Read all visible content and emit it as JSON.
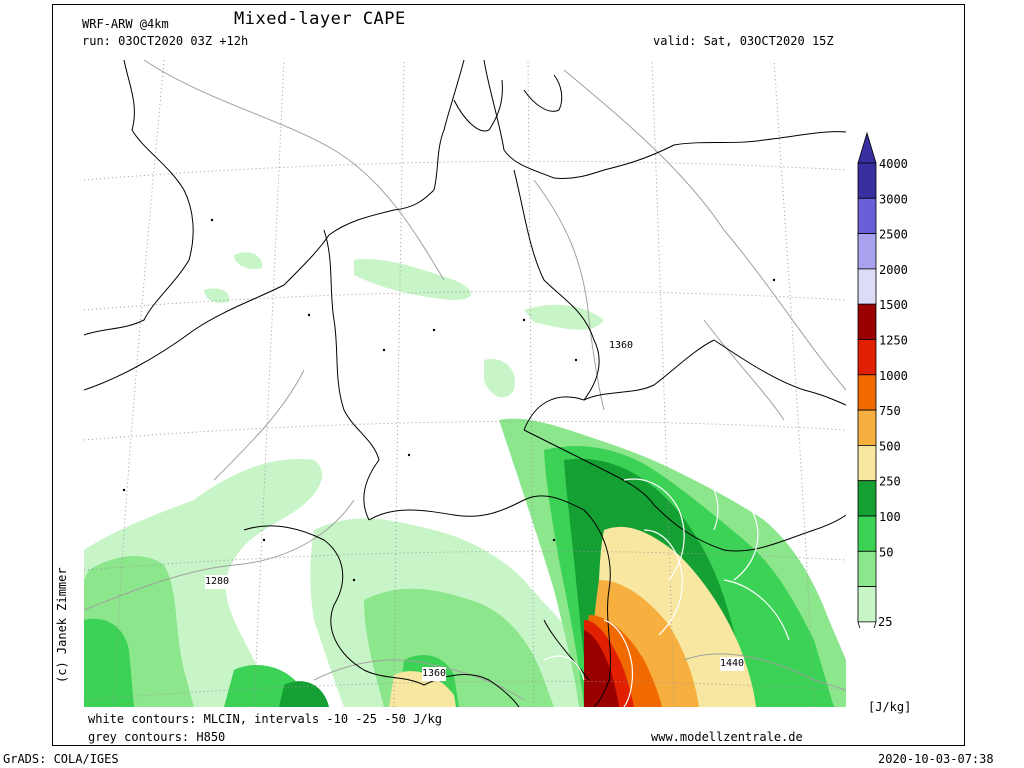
{
  "header": {
    "model": "WRF-ARW @4km",
    "title": "Mixed-layer CAPE",
    "run": "run: 03OCT2020 03Z +12h",
    "valid": "valid: Sat, 03OCT2020 15Z"
  },
  "footer": {
    "white_contours": "white contours: MLCIN, intervals -10 -25 -50 J/kg",
    "grey_contours": "grey contours: H850",
    "website": "www.modellzentrale.de",
    "grads": "GrADS: COLA/IGES",
    "timestamp": "2020-10-03-07:38"
  },
  "credit": "(c) Janek Zimmer",
  "legend": {
    "unit": "[J/kg]",
    "levels": [
      {
        "label": "4000",
        "color": "#3a2fa0"
      },
      {
        "label": "3000",
        "color": "#6a5fd8"
      },
      {
        "label": "2500",
        "color": "#a9a2ee"
      },
      {
        "label": "2000",
        "color": "#dcdcf6"
      },
      {
        "label": "1500",
        "color": "#9b0000"
      },
      {
        "label": "1250",
        "color": "#e02000"
      },
      {
        "label": "1000",
        "color": "#f06a00"
      },
      {
        "label": "750",
        "color": "#f7b040"
      },
      {
        "label": "500",
        "color": "#f7e7a0"
      },
      {
        "label": "250",
        "color": "#14a032"
      },
      {
        "label": "100",
        "color": "#3cd255"
      },
      {
        "label": "50",
        "color": "#8ce68c"
      },
      {
        "label": "25",
        "color": "#c8f5c8"
      }
    ],
    "bottom_label": "25"
  },
  "contour_labels": [
    {
      "text": "1360",
      "where": "central"
    },
    {
      "text": "1280",
      "where": "west"
    },
    {
      "text": "1360",
      "where": "south"
    },
    {
      "text": "1440",
      "where": "southeast"
    }
  ]
}
